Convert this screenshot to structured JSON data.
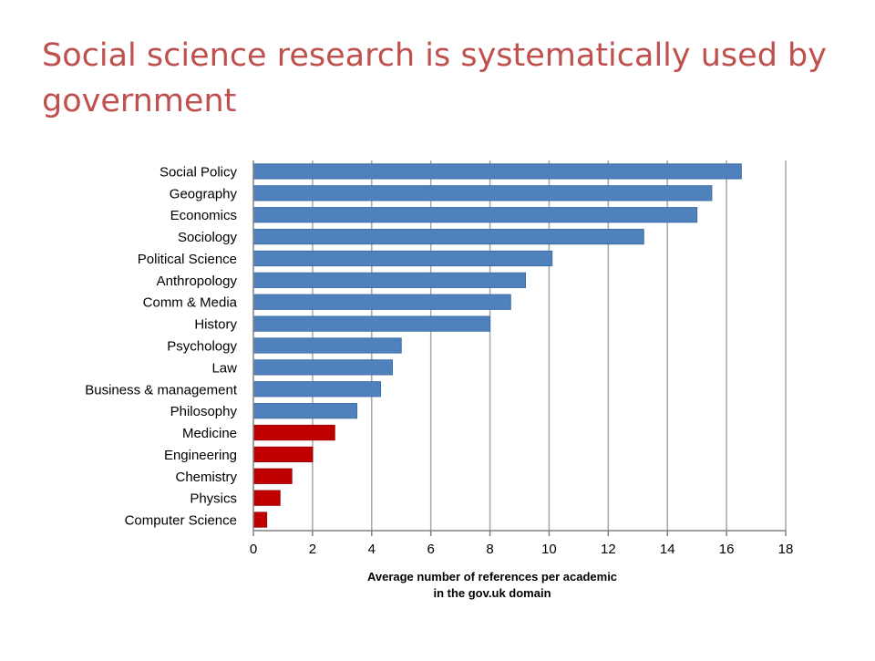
{
  "slide": {
    "title": "Social science research is systematically used by government"
  },
  "chart_data": {
    "type": "bar",
    "orientation": "horizontal",
    "categories": [
      "Social Policy",
      "Geography",
      "Economics",
      "Sociology",
      "Political Science",
      "Anthropology",
      "Comm & Media",
      "History",
      "Psychology",
      "Law",
      "Business & management",
      "Philosophy",
      "Medicine",
      "Engineering",
      "Chemistry",
      "Physics",
      "Computer Science"
    ],
    "values": [
      16.5,
      15.5,
      15.0,
      13.2,
      10.1,
      9.2,
      8.7,
      8.0,
      5.0,
      4.7,
      4.3,
      3.5,
      2.75,
      2.0,
      1.3,
      0.9,
      0.45
    ],
    "group": [
      "social",
      "social",
      "social",
      "social",
      "social",
      "social",
      "social",
      "social",
      "social",
      "social",
      "social",
      "social",
      "stem",
      "stem",
      "stem",
      "stem",
      "stem"
    ],
    "colors": {
      "social": "#4f81bd",
      "stem": "#c00000",
      "grid": "#a6a6a6",
      "axis": "#808080",
      "title": "#c0504d"
    },
    "xlabel_lines": [
      "Average number of references per academic",
      "in the gov.uk domain"
    ],
    "xlim": [
      0,
      18
    ],
    "xticks": [
      0,
      2,
      4,
      6,
      8,
      10,
      12,
      14,
      16,
      18
    ],
    "grid": true
  }
}
